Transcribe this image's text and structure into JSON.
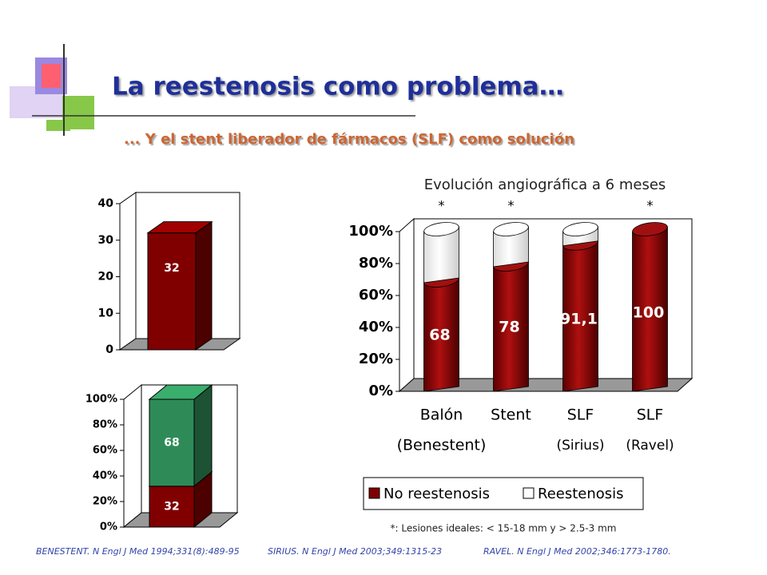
{
  "slide": {
    "title": "La reestenosis como problema…",
    "subtitle": "... Y el stent liberador de fármacos (SLF) como solución",
    "footnote": "*: Lesiones ideales: < 15-18 mm y > 2.5-3 mm",
    "references": [
      "BENESTENT. N Engl J Med 1994;331(8):489-95",
      "SIRIUS. N Engl J Med 2003;349:1315-23",
      "RAVEL. N Engl J Med 2002;346:1773-1780."
    ]
  },
  "chart_data": [
    {
      "type": "bar",
      "categories": [
        null
      ],
      "values": [
        32
      ],
      "color": "#800000",
      "ylim": [
        0,
        40
      ],
      "yticks": [
        0,
        10,
        20,
        30,
        40
      ]
    },
    {
      "type": "stacked_bar",
      "categories": [
        null
      ],
      "series": [
        {
          "name": "No reestenosis",
          "color": "#800000",
          "values": [
            32
          ]
        },
        {
          "name": "Reestenosis",
          "color": "#2e8b57",
          "values": [
            68
          ]
        }
      ],
      "ylim": [
        0,
        100
      ],
      "yticks": [
        {
          "value": 0,
          "label": "0%"
        },
        {
          "value": 20,
          "label": "20%"
        },
        {
          "value": 40,
          "label": "40%"
        },
        {
          "value": 60,
          "label": "60%"
        },
        {
          "value": 80,
          "label": "80%"
        },
        {
          "value": 100,
          "label": "100%"
        }
      ]
    },
    {
      "type": "stacked_bar",
      "shape": "cylinder",
      "title": "Evolución angiográfica a 6 meses",
      "categories": [
        "Balón",
        "Stent",
        "SLF",
        "SLF"
      ],
      "sublabels": [
        "(Benestent)",
        null,
        "(Sirius)",
        "(Ravel)"
      ],
      "annotations": [
        "*",
        "*",
        null,
        "*"
      ],
      "series": [
        {
          "name": "No reestenosis",
          "color": "#800000",
          "values": [
            68,
            78,
            91.1,
            100
          ],
          "value_labels": [
            "68",
            "78",
            "91,1",
            "100"
          ]
        },
        {
          "name": "Reestenosis",
          "color": "#ffffff",
          "values": [
            32,
            22,
            8.9,
            0
          ]
        }
      ],
      "ylim": [
        0,
        100
      ],
      "yticks": [
        {
          "value": 0,
          "label": "0%"
        },
        {
          "value": 20,
          "label": "20%"
        },
        {
          "value": 40,
          "label": "40%"
        },
        {
          "value": 60,
          "label": "60%"
        },
        {
          "value": 80,
          "label": "80%"
        },
        {
          "value": 100,
          "label": "100%"
        }
      ],
      "legend": "bottom"
    }
  ]
}
